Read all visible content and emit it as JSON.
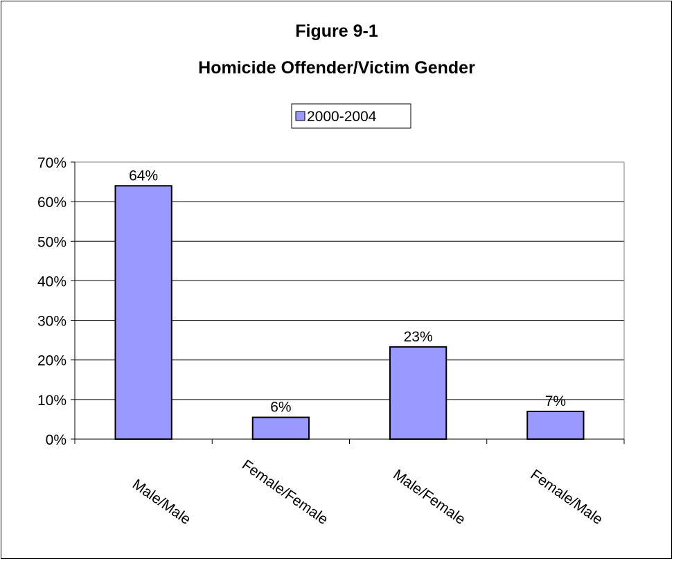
{
  "chart_data": {
    "type": "bar",
    "title": "Figure 9-1",
    "subtitle": "Homicide Offender/Victim Gender",
    "categories": [
      "Male/Male",
      "Female/Female",
      "Male/Female",
      "Female/Male"
    ],
    "series": [
      {
        "name": "2000-2004",
        "values": [
          64,
          5.5,
          23.3,
          7
        ],
        "data_labels": [
          "64%",
          "6%",
          "23%",
          "7%"
        ],
        "color": "#9999ff"
      }
    ],
    "ylim": [
      0,
      70
    ],
    "yticks": [
      "0%",
      "10%",
      "20%",
      "30%",
      "40%",
      "50%",
      "60%",
      "70%"
    ],
    "grid": true,
    "legend_position": "top-center",
    "category_label_rotation": "diagonal"
  }
}
